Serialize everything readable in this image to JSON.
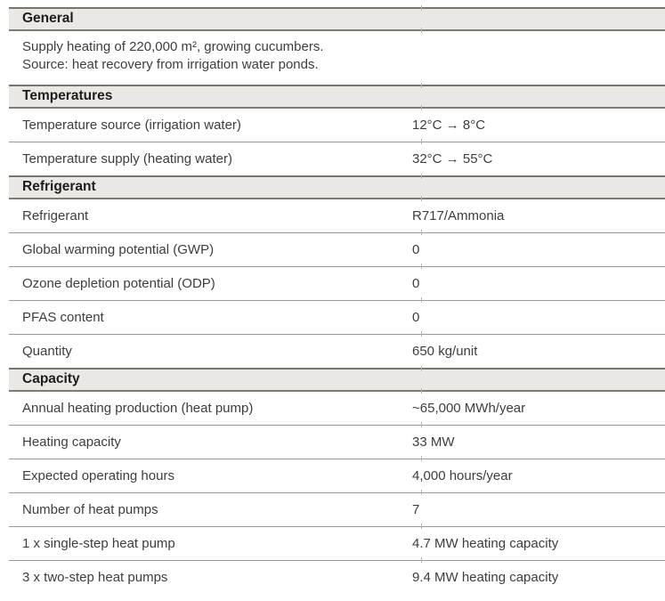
{
  "colors": {
    "header_band_bg": "#e9e8e5",
    "section_border": "#76756f",
    "row_separator": "#9b9993",
    "header_text": "#1e1d1b",
    "body_text": "#3e3d3b"
  },
  "table": {
    "sections": [
      {
        "title": "General",
        "paragraph": [
          "Supply heating of 220,000 m², growing cucumbers.",
          "Source: heat recovery from irrigation water ponds."
        ]
      },
      {
        "title": "Temperatures",
        "rows": [
          {
            "label": "Temperature source (irrigation water)",
            "value": "12°C → 8°C"
          },
          {
            "label": "Temperature supply (heating water)",
            "value": "32°C → 55°C"
          }
        ]
      },
      {
        "title": "Refrigerant",
        "rows": [
          {
            "label": "Refrigerant",
            "value": "R717/Ammonia"
          },
          {
            "label": "Global warming potential (GWP)",
            "value": "0"
          },
          {
            "label": "Ozone depletion potential (ODP)",
            "value": "0"
          },
          {
            "label": "PFAS content",
            "value": "0"
          },
          {
            "label": "Quantity",
            "value": "650 kg/unit"
          }
        ]
      },
      {
        "title": "Capacity",
        "rows": [
          {
            "label": "Annual heating production (heat pump)",
            "value": "~65,000 MWh/year"
          },
          {
            "label": "Heating capacity",
            "value": "33 MW"
          },
          {
            "label": "Expected operating hours",
            "value": "4,000 hours/year"
          },
          {
            "label": "Number of heat pumps",
            "value": "7"
          },
          {
            "label": "1 x single-step heat pump",
            "value": "4.7 MW heating capacity"
          },
          {
            "label": "3 x two-step heat pumps",
            "value": "9.4 MW heating capacity"
          }
        ]
      }
    ]
  }
}
